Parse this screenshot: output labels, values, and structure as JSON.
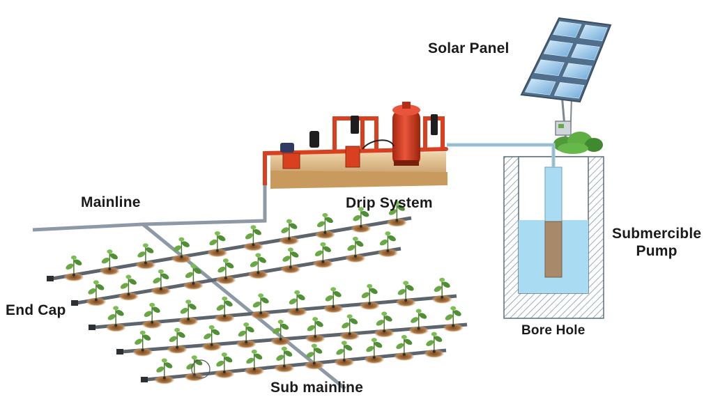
{
  "labels": {
    "solar_panel": "Solar Panel",
    "drip_system": "Drip System",
    "mainline": "Mainline",
    "submercible_pump": "Submercible Pump",
    "bore_hole": "Bore Hole",
    "end_cap": "End Cap",
    "sub_mainline": "Sub mainline"
  },
  "colors": {
    "pipe": "#8d9aa6",
    "water_pipe": "#9fc6d8",
    "water": "#a9dcf3",
    "pump": "#a8896a",
    "hatch": "#6f8a9a",
    "platform": "#e2c291",
    "tank": "#d9401f",
    "solar_cell": "#8fc1e8",
    "soil": "#b07a45",
    "plant": "#6aa845"
  },
  "components": [
    "solar-panel",
    "controller",
    "drip-system-unit",
    "bore-hole",
    "submersible-pump",
    "mainline",
    "sub-mainline",
    "laterals",
    "plants"
  ]
}
